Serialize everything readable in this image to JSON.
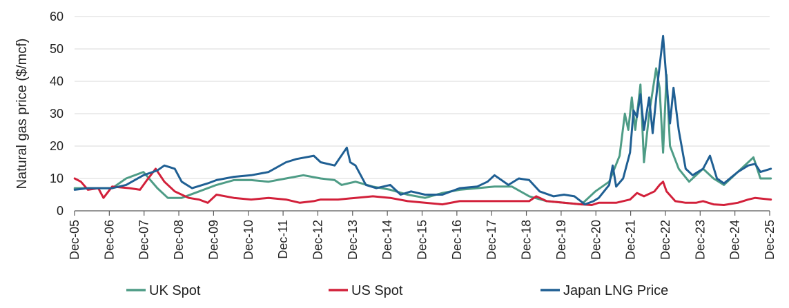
{
  "chart_data": {
    "type": "line",
    "ylabel": "Natural gas price ($/mcf)",
    "ylim": [
      0,
      60
    ],
    "yticks": [
      "0",
      "10",
      "20",
      "30",
      "40",
      "50",
      "60"
    ],
    "xticks": [
      "Dec-05",
      "Dec-06",
      "Dec-07",
      "Dec-08",
      "Dec-09",
      "Dec-10",
      "Dec-11",
      "Dec-12",
      "Dec-13",
      "Dec-14",
      "Dec-15",
      "Dec-16",
      "Dec-17",
      "Dec-18",
      "Dec-19",
      "Dec-20",
      "Dec-21",
      "Dec-22",
      "Dec-23",
      "Dec-24",
      "Dec-25"
    ],
    "xrange": [
      2005.917,
      2025.917
    ],
    "grid": true,
    "legend_position": "bottom",
    "series": [
      {
        "name": "UK Spot",
        "color": "#4e9c86",
        "points": [
          [
            2005.92,
            7.0
          ],
          [
            2006.5,
            7.0
          ],
          [
            2007.0,
            7.0
          ],
          [
            2007.4,
            10.0
          ],
          [
            2007.9,
            12.0
          ],
          [
            2008.3,
            7.0
          ],
          [
            2008.6,
            4.0
          ],
          [
            2009.0,
            4.0
          ],
          [
            2009.5,
            6.0
          ],
          [
            2010.0,
            8.0
          ],
          [
            2010.5,
            9.5
          ],
          [
            2011.0,
            9.5
          ],
          [
            2011.5,
            9.0
          ],
          [
            2012.0,
            10.0
          ],
          [
            2012.5,
            11.0
          ],
          [
            2013.0,
            10.0
          ],
          [
            2013.4,
            9.5
          ],
          [
            2013.6,
            8.0
          ],
          [
            2014.0,
            9.0
          ],
          [
            2014.5,
            7.5
          ],
          [
            2015.0,
            6.5
          ],
          [
            2015.5,
            5.0
          ],
          [
            2016.0,
            4.0
          ],
          [
            2016.5,
            5.5
          ],
          [
            2017.0,
            6.5
          ],
          [
            2017.5,
            7.0
          ],
          [
            2018.0,
            7.5
          ],
          [
            2018.5,
            7.5
          ],
          [
            2019.0,
            4.5
          ],
          [
            2019.5,
            3.0
          ],
          [
            2020.0,
            2.5
          ],
          [
            2020.5,
            2.0
          ],
          [
            2020.9,
            6.0
          ],
          [
            2021.3,
            9.0
          ],
          [
            2021.6,
            17.0
          ],
          [
            2021.75,
            30.0
          ],
          [
            2021.85,
            25.0
          ],
          [
            2021.95,
            35.0
          ],
          [
            2022.05,
            25.0
          ],
          [
            2022.2,
            39.0
          ],
          [
            2022.3,
            15.0
          ],
          [
            2022.45,
            30.0
          ],
          [
            2022.65,
            44.0
          ],
          [
            2022.75,
            38.0
          ],
          [
            2022.85,
            18.0
          ],
          [
            2022.95,
            42.0
          ],
          [
            2023.05,
            20.0
          ],
          [
            2023.3,
            13.0
          ],
          [
            2023.6,
            9.0
          ],
          [
            2024.0,
            13.0
          ],
          [
            2024.3,
            10.0
          ],
          [
            2024.6,
            8.0
          ],
          [
            2025.0,
            12.0
          ],
          [
            2025.3,
            15.0
          ],
          [
            2025.45,
            16.5
          ],
          [
            2025.65,
            10.0
          ],
          [
            2025.95,
            10.0
          ]
        ]
      },
      {
        "name": "US Spot",
        "color": "#d2203a",
        "points": [
          [
            2005.92,
            10.0
          ],
          [
            2006.1,
            9.0
          ],
          [
            2006.3,
            6.5
          ],
          [
            2006.6,
            7.0
          ],
          [
            2006.75,
            4.0
          ],
          [
            2007.0,
            7.5
          ],
          [
            2007.5,
            7.0
          ],
          [
            2007.8,
            6.5
          ],
          [
            2008.0,
            9.5
          ],
          [
            2008.25,
            13.0
          ],
          [
            2008.5,
            9.0
          ],
          [
            2008.8,
            6.0
          ],
          [
            2009.2,
            4.0
          ],
          [
            2009.5,
            3.5
          ],
          [
            2009.75,
            2.5
          ],
          [
            2010.0,
            5.0
          ],
          [
            2010.5,
            4.0
          ],
          [
            2011.0,
            3.5
          ],
          [
            2011.5,
            4.0
          ],
          [
            2012.0,
            3.5
          ],
          [
            2012.4,
            2.5
          ],
          [
            2012.8,
            3.0
          ],
          [
            2013.0,
            3.5
          ],
          [
            2013.5,
            3.5
          ],
          [
            2014.0,
            4.0
          ],
          [
            2014.5,
            4.5
          ],
          [
            2015.0,
            4.0
          ],
          [
            2015.5,
            3.0
          ],
          [
            2016.0,
            2.5
          ],
          [
            2016.5,
            2.0
          ],
          [
            2017.0,
            3.0
          ],
          [
            2017.5,
            3.0
          ],
          [
            2018.0,
            3.0
          ],
          [
            2018.5,
            3.0
          ],
          [
            2019.0,
            3.0
          ],
          [
            2019.2,
            4.5
          ],
          [
            2019.5,
            3.0
          ],
          [
            2020.0,
            2.5
          ],
          [
            2020.5,
            2.0
          ],
          [
            2020.8,
            1.8
          ],
          [
            2021.0,
            2.5
          ],
          [
            2021.5,
            2.5
          ],
          [
            2021.9,
            3.5
          ],
          [
            2022.1,
            5.5
          ],
          [
            2022.3,
            4.5
          ],
          [
            2022.6,
            6.0
          ],
          [
            2022.75,
            8.0
          ],
          [
            2022.85,
            9.0
          ],
          [
            2022.95,
            6.0
          ],
          [
            2023.2,
            3.0
          ],
          [
            2023.5,
            2.5
          ],
          [
            2023.8,
            2.5
          ],
          [
            2024.0,
            3.0
          ],
          [
            2024.3,
            2.0
          ],
          [
            2024.6,
            1.8
          ],
          [
            2025.0,
            2.5
          ],
          [
            2025.3,
            3.5
          ],
          [
            2025.5,
            4.0
          ],
          [
            2025.95,
            3.5
          ]
        ]
      },
      {
        "name": "Japan LNG Price",
        "color": "#1f5f93",
        "points": [
          [
            2005.92,
            6.5
          ],
          [
            2006.3,
            7.0
          ],
          [
            2007.0,
            7.0
          ],
          [
            2007.4,
            8.0
          ],
          [
            2007.9,
            11.0
          ],
          [
            2008.3,
            12.5
          ],
          [
            2008.5,
            14.0
          ],
          [
            2008.8,
            13.0
          ],
          [
            2009.0,
            9.0
          ],
          [
            2009.3,
            7.0
          ],
          [
            2009.75,
            8.5
          ],
          [
            2010.0,
            9.5
          ],
          [
            2010.5,
            10.5
          ],
          [
            2011.0,
            11.0
          ],
          [
            2011.5,
            12.0
          ],
          [
            2012.0,
            15.0
          ],
          [
            2012.3,
            16.0
          ],
          [
            2012.8,
            17.0
          ],
          [
            2013.0,
            15.0
          ],
          [
            2013.4,
            14.0
          ],
          [
            2013.75,
            19.5
          ],
          [
            2013.85,
            15.0
          ],
          [
            2014.0,
            14.0
          ],
          [
            2014.3,
            8.0
          ],
          [
            2014.6,
            7.0
          ],
          [
            2015.0,
            8.0
          ],
          [
            2015.3,
            5.0
          ],
          [
            2015.6,
            6.0
          ],
          [
            2016.0,
            5.0
          ],
          [
            2016.5,
            5.0
          ],
          [
            2017.0,
            7.0
          ],
          [
            2017.5,
            7.5
          ],
          [
            2017.8,
            9.0
          ],
          [
            2018.0,
            11.0
          ],
          [
            2018.4,
            8.0
          ],
          [
            2018.7,
            10.0
          ],
          [
            2019.0,
            9.5
          ],
          [
            2019.3,
            6.0
          ],
          [
            2019.7,
            4.5
          ],
          [
            2020.0,
            5.0
          ],
          [
            2020.3,
            4.5
          ],
          [
            2020.6,
            2.0
          ],
          [
            2020.85,
            3.0
          ],
          [
            2021.0,
            4.0
          ],
          [
            2021.3,
            8.0
          ],
          [
            2021.4,
            14.0
          ],
          [
            2021.5,
            7.5
          ],
          [
            2021.7,
            10.0
          ],
          [
            2021.9,
            18.0
          ],
          [
            2022.0,
            31.0
          ],
          [
            2022.1,
            29.0
          ],
          [
            2022.2,
            36.0
          ],
          [
            2022.3,
            25.0
          ],
          [
            2022.45,
            35.0
          ],
          [
            2022.55,
            24.0
          ],
          [
            2022.7,
            40.0
          ],
          [
            2022.85,
            54.0
          ],
          [
            2022.95,
            40.0
          ],
          [
            2023.05,
            27.0
          ],
          [
            2023.15,
            38.0
          ],
          [
            2023.3,
            25.0
          ],
          [
            2023.5,
            13.0
          ],
          [
            2023.7,
            11.0
          ],
          [
            2024.0,
            13.0
          ],
          [
            2024.2,
            17.0
          ],
          [
            2024.4,
            10.0
          ],
          [
            2024.6,
            8.5
          ],
          [
            2025.0,
            12.0
          ],
          [
            2025.3,
            14.0
          ],
          [
            2025.5,
            14.5
          ],
          [
            2025.65,
            12.0
          ],
          [
            2025.95,
            13.0
          ]
        ]
      }
    ]
  }
}
